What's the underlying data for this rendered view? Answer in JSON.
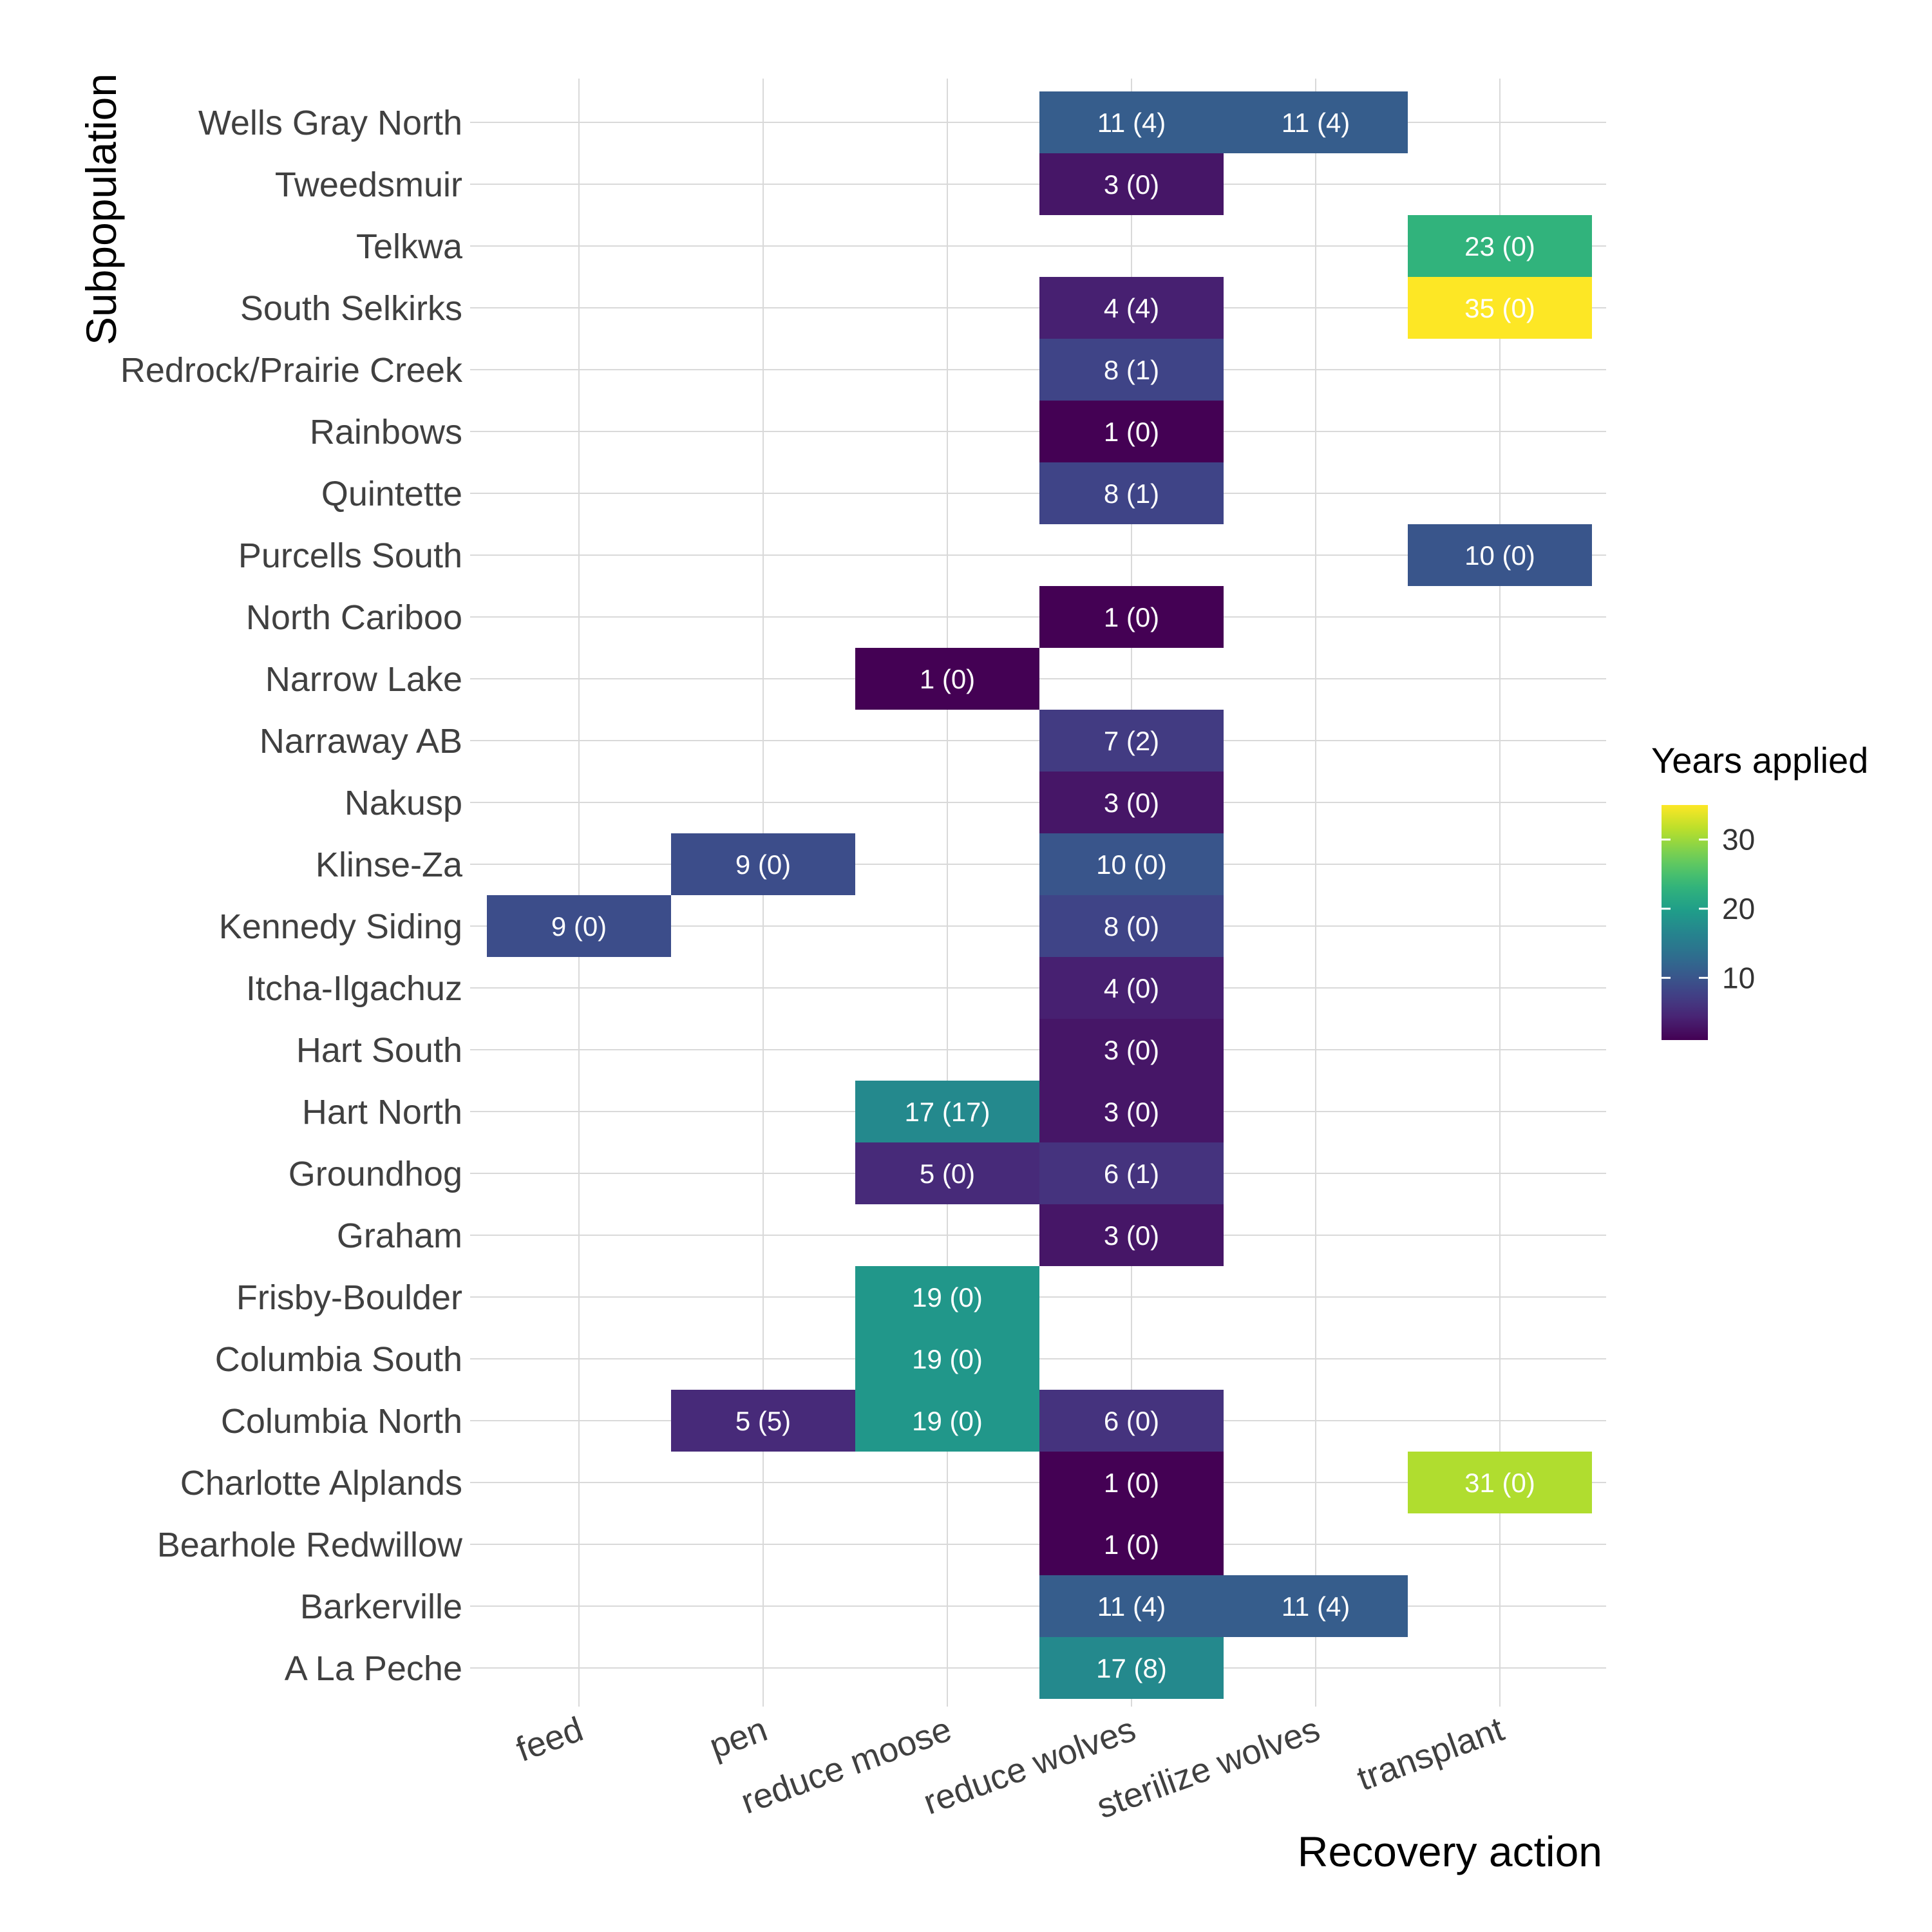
{
  "chart_data": {
    "type": "heatmap",
    "xlabel": "Recovery action",
    "ylabel": "Subpopulation",
    "x_categories": [
      "feed",
      "pen",
      "reduce moose",
      "reduce wolves",
      "sterilize wolves",
      "transplant"
    ],
    "y_categories": [
      "A La Peche",
      "Barkerville",
      "Bearhole Redwillow",
      "Charlotte Alplands",
      "Columbia North",
      "Columbia South",
      "Frisby-Boulder",
      "Graham",
      "Groundhog",
      "Hart North",
      "Hart South",
      "Itcha-Ilgachuz",
      "Kennedy Siding",
      "Klinse-Za",
      "Nakusp",
      "Narraway AB",
      "Narrow Lake",
      "North Cariboo",
      "Purcells South",
      "Quintette",
      "Rainbows",
      "Redrock/Prairie Creek",
      "South Selkirks",
      "Telkwa",
      "Tweedsmuir",
      "Wells Gray North"
    ],
    "cells": [
      {
        "y": "Wells Gray North",
        "x": "reduce wolves",
        "value": 11,
        "label": "11 (4)"
      },
      {
        "y": "Wells Gray North",
        "x": "sterilize wolves",
        "value": 11,
        "label": "11 (4)"
      },
      {
        "y": "Tweedsmuir",
        "x": "reduce wolves",
        "value": 3,
        "label": "3 (0)"
      },
      {
        "y": "Telkwa",
        "x": "transplant",
        "value": 23,
        "label": "23 (0)"
      },
      {
        "y": "South Selkirks",
        "x": "reduce wolves",
        "value": 4,
        "label": "4 (4)"
      },
      {
        "y": "South Selkirks",
        "x": "transplant",
        "value": 35,
        "label": "35 (0)"
      },
      {
        "y": "Redrock/Prairie Creek",
        "x": "reduce wolves",
        "value": 8,
        "label": "8 (1)"
      },
      {
        "y": "Rainbows",
        "x": "reduce wolves",
        "value": 1,
        "label": "1 (0)"
      },
      {
        "y": "Quintette",
        "x": "reduce wolves",
        "value": 8,
        "label": "8 (1)"
      },
      {
        "y": "Purcells South",
        "x": "transplant",
        "value": 10,
        "label": "10 (0)"
      },
      {
        "y": "North Cariboo",
        "x": "reduce wolves",
        "value": 1,
        "label": "1 (0)"
      },
      {
        "y": "Narrow Lake",
        "x": "reduce moose",
        "value": 1,
        "label": "1 (0)"
      },
      {
        "y": "Narraway AB",
        "x": "reduce wolves",
        "value": 7,
        "label": "7 (2)"
      },
      {
        "y": "Nakusp",
        "x": "reduce wolves",
        "value": 3,
        "label": "3 (0)"
      },
      {
        "y": "Klinse-Za",
        "x": "pen",
        "value": 9,
        "label": "9 (0)"
      },
      {
        "y": "Klinse-Za",
        "x": "reduce wolves",
        "value": 10,
        "label": "10 (0)"
      },
      {
        "y": "Kennedy Siding",
        "x": "feed",
        "value": 9,
        "label": "9 (0)"
      },
      {
        "y": "Kennedy Siding",
        "x": "reduce wolves",
        "value": 8,
        "label": "8 (0)"
      },
      {
        "y": "Itcha-Ilgachuz",
        "x": "reduce wolves",
        "value": 4,
        "label": "4 (0)"
      },
      {
        "y": "Hart South",
        "x": "reduce wolves",
        "value": 3,
        "label": "3 (0)"
      },
      {
        "y": "Hart North",
        "x": "reduce moose",
        "value": 17,
        "label": "17 (17)"
      },
      {
        "y": "Hart North",
        "x": "reduce wolves",
        "value": 3,
        "label": "3 (0)"
      },
      {
        "y": "Groundhog",
        "x": "reduce moose",
        "value": 5,
        "label": "5 (0)"
      },
      {
        "y": "Groundhog",
        "x": "reduce wolves",
        "value": 6,
        "label": "6 (1)"
      },
      {
        "y": "Graham",
        "x": "reduce wolves",
        "value": 3,
        "label": "3 (0)"
      },
      {
        "y": "Frisby-Boulder",
        "x": "reduce moose",
        "value": 19,
        "label": "19 (0)"
      },
      {
        "y": "Columbia South",
        "x": "reduce moose",
        "value": 19,
        "label": "19 (0)"
      },
      {
        "y": "Columbia North",
        "x": "pen",
        "value": 5,
        "label": "5 (5)"
      },
      {
        "y": "Columbia North",
        "x": "reduce moose",
        "value": 19,
        "label": "19 (0)"
      },
      {
        "y": "Columbia North",
        "x": "reduce wolves",
        "value": 6,
        "label": "6 (0)"
      },
      {
        "y": "Charlotte Alplands",
        "x": "reduce wolves",
        "value": 1,
        "label": "1 (0)"
      },
      {
        "y": "Charlotte Alplands",
        "x": "transplant",
        "value": 31,
        "label": "31 (0)"
      },
      {
        "y": "Bearhole Redwillow",
        "x": "reduce wolves",
        "value": 1,
        "label": "1 (0)"
      },
      {
        "y": "Barkerville",
        "x": "reduce wolves",
        "value": 11,
        "label": "11 (4)"
      },
      {
        "y": "Barkerville",
        "x": "sterilize wolves",
        "value": 11,
        "label": "11 (4)"
      },
      {
        "y": "A La Peche",
        "x": "reduce wolves",
        "value": 17,
        "label": "17 (8)"
      }
    ],
    "legend": {
      "title": "Years applied",
      "ticks": [
        10,
        20,
        30
      ],
      "range": [
        1,
        35
      ],
      "position": "right",
      "colormap": "viridis"
    },
    "grid": true
  }
}
